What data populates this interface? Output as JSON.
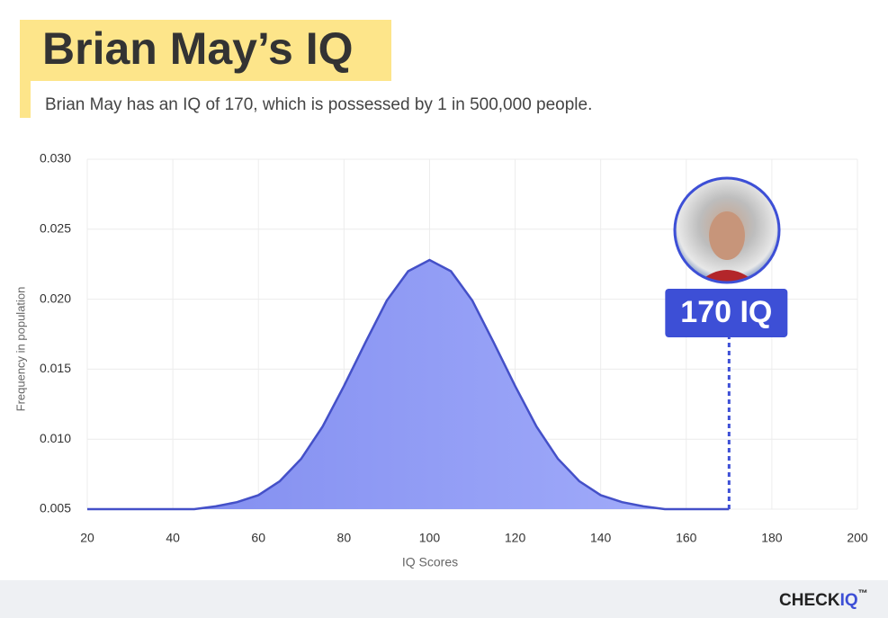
{
  "chart_data": {
    "type": "area",
    "title": "Brian May’s IQ",
    "subtitle": "Brian May has an IQ of 170, which is possessed by 1 in 500,000 people.",
    "x_label": "IQ Scores",
    "y_label": "Frequency in population",
    "x": [
      20,
      25,
      30,
      35,
      40,
      45,
      50,
      55,
      60,
      65,
      70,
      75,
      80,
      85,
      90,
      95,
      100,
      105,
      110,
      115,
      120,
      125,
      130,
      135,
      140,
      145,
      150,
      155,
      160,
      165,
      170
    ],
    "values": [
      0.005,
      0.005,
      0.005,
      0.005,
      0.005,
      0.005,
      0.0052,
      0.0055,
      0.006,
      0.007,
      0.0086,
      0.0109,
      0.0138,
      0.0169,
      0.0199,
      0.022,
      0.0228,
      0.022,
      0.0199,
      0.0169,
      0.0138,
      0.0109,
      0.0086,
      0.007,
      0.006,
      0.0055,
      0.0052,
      0.005,
      0.005,
      0.005,
      0.005
    ],
    "color": "#4450c8",
    "xlim": [
      20,
      200
    ],
    "xticks": [
      20,
      40,
      60,
      80,
      100,
      120,
      140,
      160,
      180,
      200
    ],
    "ylim": [
      0.005,
      0.03
    ],
    "yticks": [
      0.005,
      {
        "value": 0.01,
        "label": "0.010"
      },
      0.015,
      {
        "value": 0.02,
        "label": "0.020"
      },
      0.025,
      {
        "value": 0.03,
        "label": "0.030"
      }
    ],
    "grid": true,
    "marker": {
      "x": 170,
      "label": "170 IQ",
      "color": "#3d4fd6"
    }
  },
  "footer": {
    "brand": "CHECK",
    "brand_accent": "IQ",
    "trademark": "™"
  }
}
